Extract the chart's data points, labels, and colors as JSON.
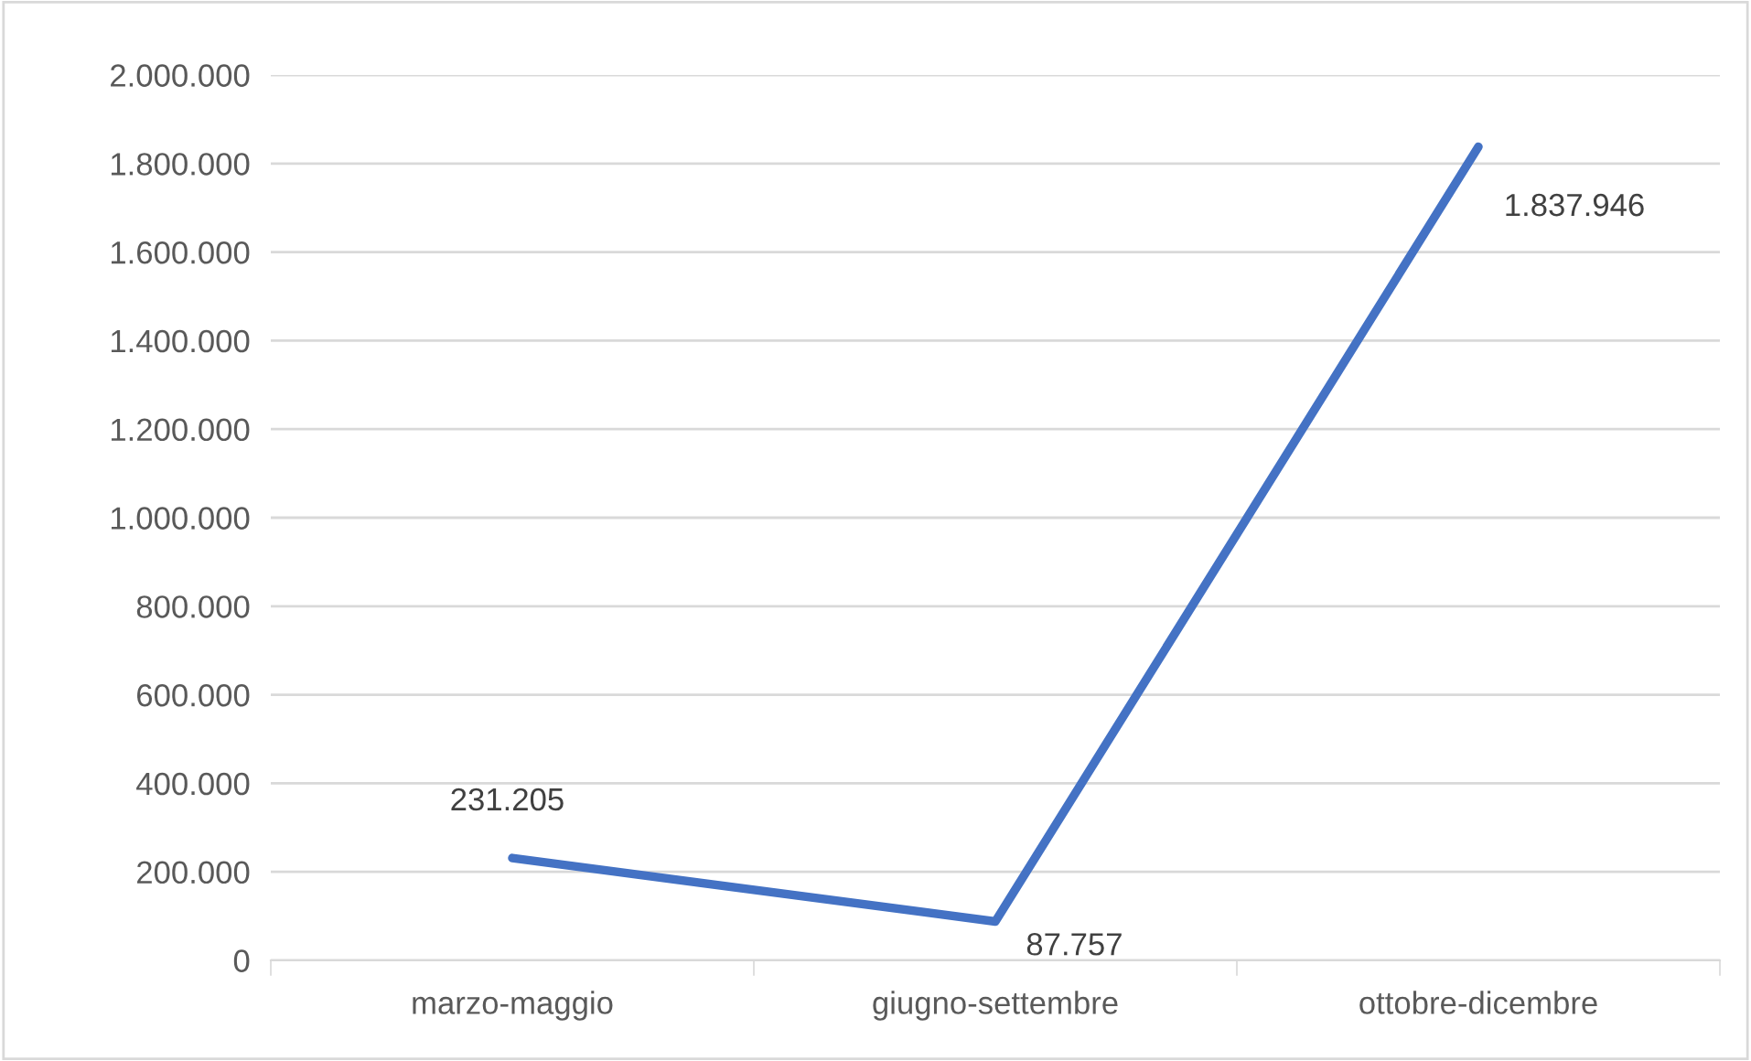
{
  "chart_data": {
    "type": "line",
    "categories": [
      "marzo-maggio",
      "giugno-settembre",
      "ottobre-dicembre"
    ],
    "series": [
      {
        "color": "#4472c4",
        "values": [
          231205,
          87757,
          1837946
        ],
        "value_labels": [
          "231.205",
          "87.757",
          "1.837.946"
        ]
      }
    ],
    "ylim": [
      0,
      2000000
    ],
    "yticks": [
      0,
      {
        "value": 200000,
        "label": "200.000"
      },
      {
        "value": 400000,
        "label": "400.000"
      },
      {
        "value": 600000,
        "label": "600.000"
      },
      {
        "value": 800000,
        "label": "800.000"
      },
      {
        "value": 1000000,
        "label": "1.000.000"
      },
      {
        "value": 1200000,
        "label": "1.200.000"
      },
      {
        "value": 1400000,
        "label": "1.400.000"
      },
      {
        "value": 1600000,
        "label": "1.600.000"
      },
      {
        "value": 1800000,
        "label": "1.800.000"
      },
      {
        "value": 2000000,
        "label": "2.000.000"
      }
    ],
    "grid": "y",
    "marker": "none",
    "line_style": "solid"
  }
}
